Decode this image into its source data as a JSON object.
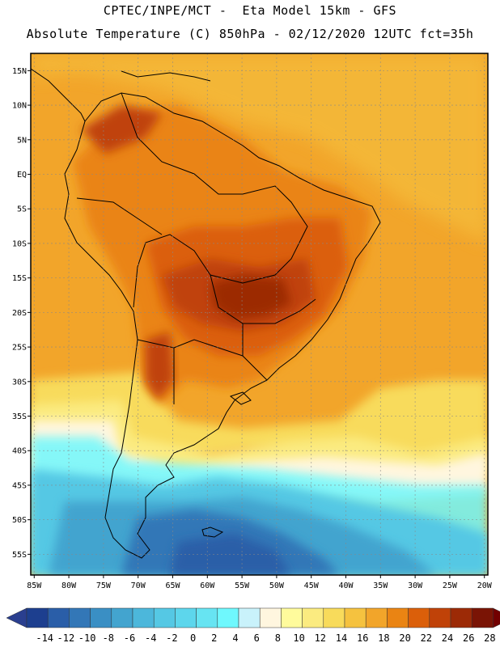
{
  "title": {
    "line1": "CPTEC/INPE/MCT -  Eta Model 15km - GFS",
    "line2": "Absolute Temperature (C) 850hPa - 02/12/2020 12UTC fct=35h"
  },
  "map": {
    "lat_labels": [
      "15N",
      "10N",
      "5N",
      "EQ",
      "5S",
      "10S",
      "15S",
      "20S",
      "25S",
      "30S",
      "35S",
      "40S",
      "45S",
      "50S",
      "55S"
    ],
    "lon_labels": [
      "85W",
      "80W",
      "75W",
      "70W",
      "65W",
      "60W",
      "55W",
      "50W",
      "45W",
      "40W",
      "35W",
      "30W",
      "25W",
      "20W"
    ],
    "lat_range": [
      17.5,
      -58
    ],
    "lon_range": [
      -85.5,
      -19.5
    ],
    "grid": true
  },
  "legend": {
    "labels": [
      "-14",
      "-12",
      "-10",
      "-8",
      "-6",
      "-4",
      "-2",
      "0",
      "2",
      "4",
      "6",
      "8",
      "10",
      "12",
      "14",
      "16",
      "18",
      "20",
      "22",
      "24",
      "26",
      "28"
    ],
    "colors": [
      "#1d3f8f",
      "#2a5ea8",
      "#3377b7",
      "#3a8fc4",
      "#43a4cf",
      "#4cb7db",
      "#55c8e4",
      "#5dd6ec",
      "#67e4f2",
      "#6ff8fd",
      "#c9f2fb",
      "#fff6df",
      "#fffb9c",
      "#fbeb80",
      "#f8db5b",
      "#f5c23f",
      "#f2a52a",
      "#ea8413",
      "#db5f0a",
      "#c04208",
      "#9c2a06",
      "#7a1405"
    ],
    "under_color": "#2a3f8f",
    "over_color": "#720000"
  },
  "icons": {
    "left_arrow": "legend-under-arrow",
    "right_arrow": "legend-over-arrow"
  }
}
